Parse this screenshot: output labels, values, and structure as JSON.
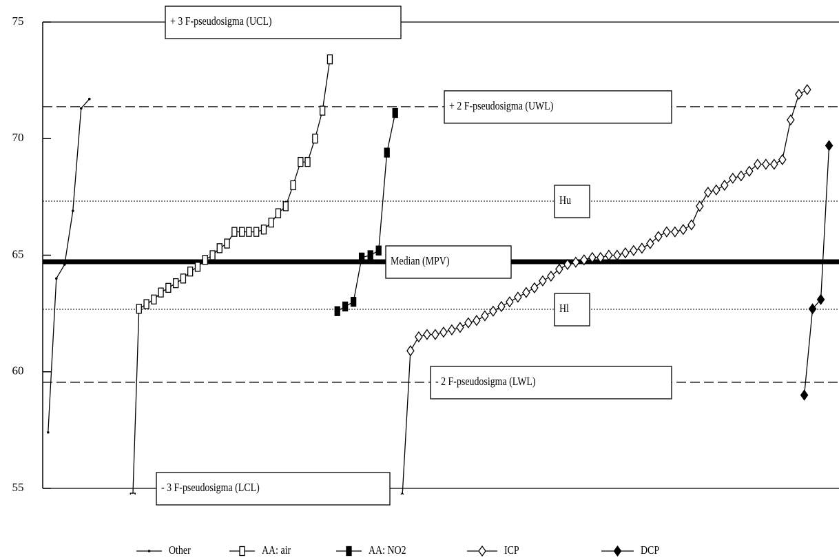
{
  "chart_data": {
    "type": "line",
    "ylim": [
      55,
      75
    ],
    "yticks": [
      55,
      60,
      65,
      70,
      75
    ],
    "xlim": [
      0,
      192.7
    ],
    "reference_lines": [
      {
        "label": "+ 3 F-pseudosigma  (UCL)",
        "value": 75,
        "style": "solid"
      },
      {
        "label": "+ 2 F-pseudosigma  (UWL)",
        "value": 71.37,
        "style": "dashed"
      },
      {
        "label": "Hu",
        "value": 67.32,
        "style": "dotted"
      },
      {
        "label": "Median  (MPV)",
        "value": 64.72,
        "style": "thick"
      },
      {
        "label": "Hl",
        "value": 62.68,
        "style": "dotted"
      },
      {
        "label": "- 2 F-pseudosigma  (LWL)",
        "value": 59.55,
        "style": "dashed"
      },
      {
        "label": "- 3 F-pseudosigma  (LCL)",
        "value": 55,
        "style": "solid"
      }
    ],
    "series": [
      {
        "name": "Other",
        "color": "#000000",
        "marker": "dot",
        "x": [
          1.3,
          3.3,
          5.3,
          7.3,
          9.3,
          11.3
        ],
        "values": [
          57.4,
          64.0,
          64.6,
          66.9,
          71.3,
          71.7
        ]
      },
      {
        "name": "AA: air",
        "color": "#000000",
        "marker": "square",
        "x": [
          21.8,
          23.3,
          25.1,
          26.9,
          28.6,
          30.4,
          32.2,
          34.0,
          35.7,
          37.5,
          39.3,
          41.1,
          42.8,
          44.6,
          46.4,
          48.2,
          49.9,
          51.7,
          53.5,
          55.3,
          57.0,
          58.8,
          60.6,
          62.4,
          64.1,
          65.9,
          67.7,
          69.5
        ],
        "values": [
          54.6,
          62.7,
          62.9,
          63.1,
          63.4,
          63.6,
          63.8,
          64.0,
          64.3,
          64.5,
          64.8,
          65.0,
          65.3,
          65.5,
          66.0,
          66.0,
          66.0,
          66.0,
          66.1,
          66.4,
          66.8,
          67.1,
          68.0,
          69.0,
          69.0,
          70.0,
          71.2,
          73.4
        ]
      },
      {
        "name": "AA: NO2",
        "color": "#000000",
        "marker": "filled-square",
        "x": [
          71.3,
          73.2,
          75.2,
          77.2,
          79.3,
          81.3,
          83.3,
          85.3
        ],
        "values": [
          62.6,
          62.8,
          63.0,
          64.9,
          65.0,
          65.2,
          69.4,
          71.1
        ]
      },
      {
        "name": "ICP",
        "color": "#000000",
        "marker": "diamond",
        "x": [
          87,
          89,
          91,
          93,
          95,
          97,
          99,
          101,
          103,
          105,
          107,
          109,
          111,
          113,
          115,
          117,
          119,
          121,
          123,
          125,
          127,
          129,
          131,
          133,
          135,
          137,
          139,
          141,
          143,
          145,
          147,
          149,
          151,
          153,
          155,
          157,
          159,
          161,
          163,
          165,
          167,
          169,
          171,
          173,
          175,
          177,
          179,
          181,
          183,
          185
        ],
        "values": [
          54.6,
          60.9,
          61.5,
          61.6,
          61.6,
          61.7,
          61.8,
          61.9,
          62.1,
          62.2,
          62.4,
          62.6,
          62.8,
          63.0,
          63.2,
          63.4,
          63.6,
          63.9,
          64.1,
          64.4,
          64.6,
          64.7,
          64.8,
          64.9,
          64.9,
          65.0,
          65.0,
          65.1,
          65.2,
          65.3,
          65.5,
          65.8,
          66.0,
          66.0,
          66.1,
          66.3,
          67.1,
          67.7,
          67.8,
          68.0,
          68.3,
          68.4,
          68.6,
          68.9,
          68.9,
          68.9,
          69.1,
          70.8,
          71.9,
          72.1
        ]
      },
      {
        "name": "DCP",
        "color": "#000000",
        "marker": "filled-diamond",
        "x": [
          184.3,
          186.3,
          188.3,
          190.3
        ],
        "values": [
          59.0,
          62.7,
          63.1,
          69.7
        ]
      }
    ]
  }
}
